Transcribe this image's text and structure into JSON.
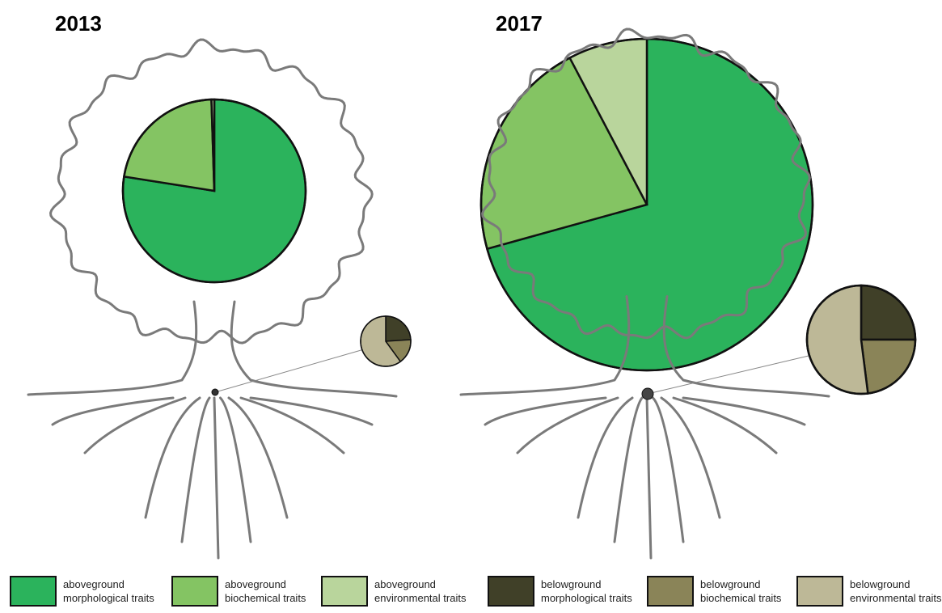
{
  "chart_data": [
    {
      "type": "pie",
      "title": "2013",
      "values": [
        77.5,
        22,
        0.5
      ]
    },
    {
      "type": "pie",
      "values": [
        24,
        16,
        60
      ]
    },
    {
      "type": "pie",
      "title": "2017",
      "values": [
        70.7,
        21.6,
        7.7
      ]
    },
    {
      "type": "pie",
      "values": [
        25,
        23,
        52
      ]
    }
  ],
  "legend": {
    "labels": [
      "aboveground morphological traits",
      "aboveground biochemical traits",
      "aboveground environmental traits",
      "belowground morphological traits",
      "belowground biochemical traits",
      "belowground environmental traits"
    ],
    "colors": [
      "#2bb35c",
      "#84c463",
      "#b9d59c",
      "#404028",
      "#8a8458",
      "#bdb897"
    ]
  }
}
